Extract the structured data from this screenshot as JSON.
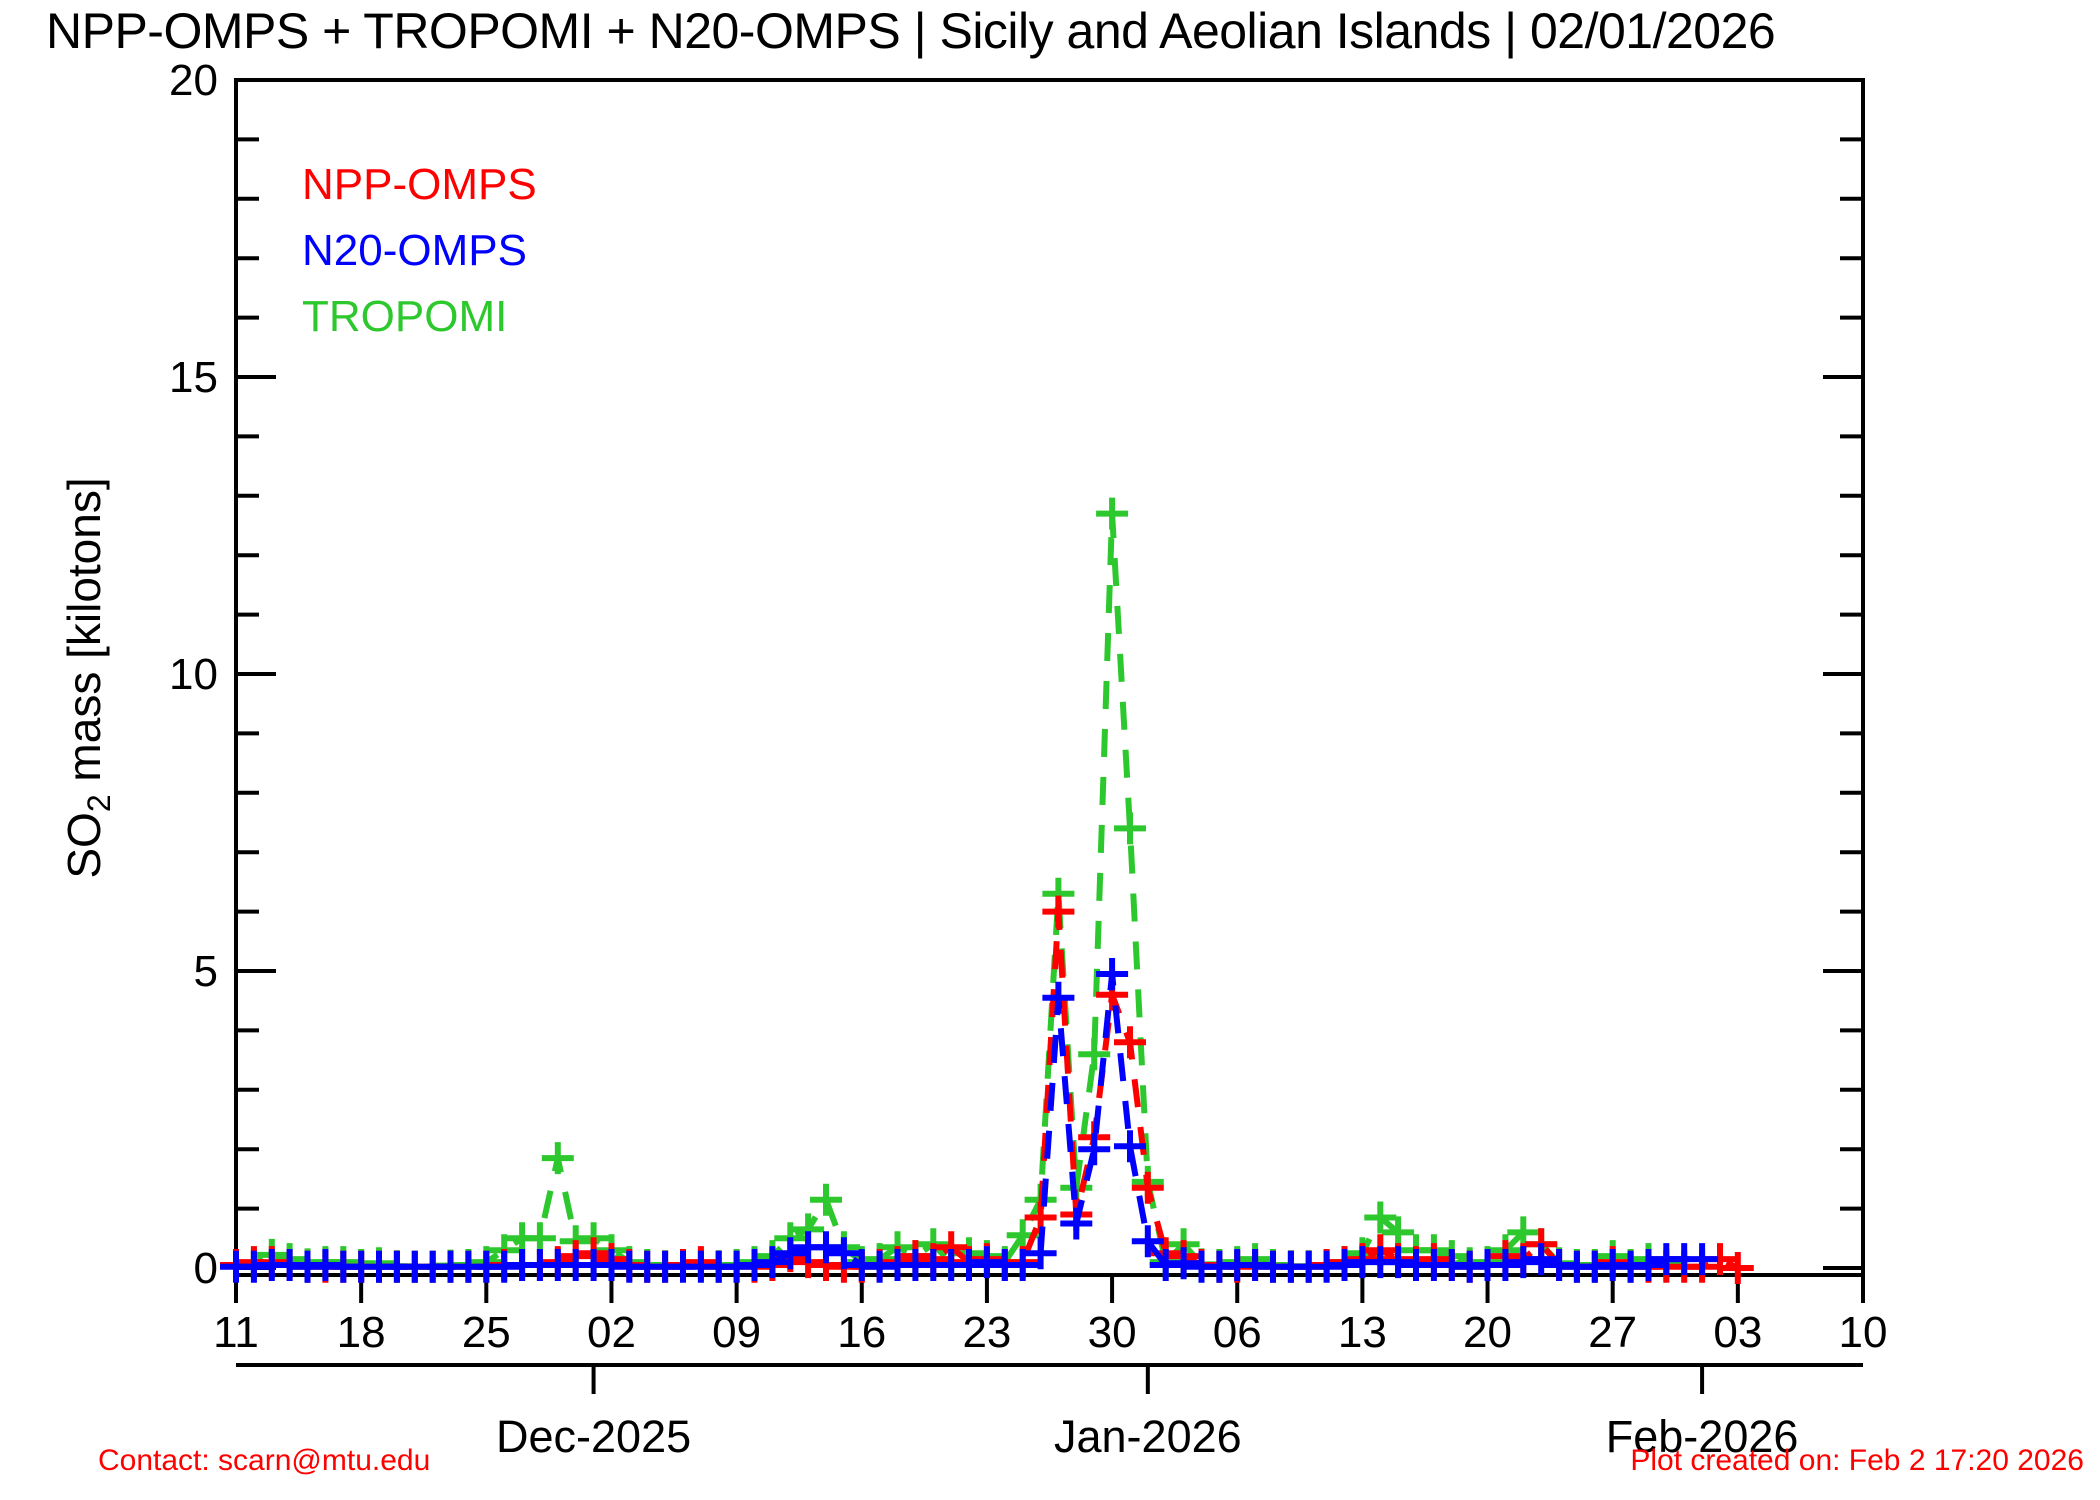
{
  "title": "NPP-OMPS + TROPOMI + N20-OMPS | Sicily and Aeolian Islands | 02/01/2026",
  "footer": {
    "contact": "Contact: scarn@mtu.edu",
    "created": "Plot created on: Feb  2 17:20 2026"
  },
  "legend": [
    {
      "label": "NPP-OMPS",
      "color": "#ff0000"
    },
    {
      "label": "N20-OMPS",
      "color": "#0000ff"
    },
    {
      "label": "TROPOMI",
      "color": "#2dc82d"
    }
  ],
  "chart_data": {
    "type": "line",
    "title": "NPP-OMPS + TROPOMI + N20-OMPS | Sicily and Aeolian Islands | 02/01/2026",
    "xlabel": "",
    "ylabel": {
      "text_main": "SO",
      "text_sub": "2",
      "text_rest": " mass [kilotons]"
    },
    "ylim": [
      0,
      20
    ],
    "yticks_major": [
      0,
      5,
      10,
      15,
      20
    ],
    "y_minor_step": 1,
    "grid": false,
    "legend_position": "upper-left-inside",
    "marker": "plus",
    "line_style": "dashed",
    "x_days_since": "2025-11-11",
    "x_range_days": [
      0,
      91
    ],
    "x_day_ticks": [
      {
        "d": 0,
        "label": "11"
      },
      {
        "d": 7,
        "label": "18"
      },
      {
        "d": 14,
        "label": "25"
      },
      {
        "d": 21,
        "label": "02"
      },
      {
        "d": 28,
        "label": "09"
      },
      {
        "d": 35,
        "label": "16"
      },
      {
        "d": 42,
        "label": "23"
      },
      {
        "d": 49,
        "label": "30"
      },
      {
        "d": 56,
        "label": "06"
      },
      {
        "d": 63,
        "label": "13"
      },
      {
        "d": 70,
        "label": "20"
      },
      {
        "d": 77,
        "label": "27"
      },
      {
        "d": 84,
        "label": "03"
      },
      {
        "d": 91,
        "label": "10"
      }
    ],
    "month_ticks": [
      {
        "d": 20,
        "label": "Dec-2025"
      },
      {
        "d": 51,
        "label": "Jan-2026"
      },
      {
        "d": 82,
        "label": "Feb-2026"
      }
    ],
    "series": [
      {
        "name": "TROPOMI",
        "color": "#2dc82d",
        "points": [
          [
            0,
            0.05
          ],
          [
            1,
            0.08
          ],
          [
            2,
            0.22
          ],
          [
            3,
            0.15
          ],
          [
            4,
            0.06
          ],
          [
            5,
            0.1
          ],
          [
            6,
            0.1
          ],
          [
            7,
            0.05
          ],
          [
            8,
            0.08
          ],
          [
            9,
            0.03
          ],
          [
            10,
            0.02
          ],
          [
            11,
            0.02
          ],
          [
            12,
            0.04
          ],
          [
            13,
            0.05
          ],
          [
            14,
            0.1
          ],
          [
            15,
            0.3
          ],
          [
            16,
            0.5
          ],
          [
            17,
            0.5
          ],
          [
            18,
            1.85
          ],
          [
            19,
            0.45
          ],
          [
            20,
            0.5
          ],
          [
            21,
            0.3
          ],
          [
            22,
            0.1
          ],
          [
            23,
            0.05
          ],
          [
            24,
            0.03
          ],
          [
            25,
            0.03
          ],
          [
            26,
            0.05
          ],
          [
            27,
            0.03
          ],
          [
            28,
            0.05
          ],
          [
            29,
            0.1
          ],
          [
            30,
            0.2
          ],
          [
            31,
            0.5
          ],
          [
            32,
            0.65
          ],
          [
            33,
            1.15
          ],
          [
            34,
            0.35
          ],
          [
            35,
            0.1
          ],
          [
            36,
            0.15
          ],
          [
            37,
            0.35
          ],
          [
            38,
            0.2
          ],
          [
            39,
            0.4
          ],
          [
            40,
            0.08
          ],
          [
            41,
            0.25
          ],
          [
            42,
            0.2
          ],
          [
            43,
            0.1
          ],
          [
            44,
            0.55
          ],
          [
            45,
            1.15
          ],
          [
            46,
            6.3
          ],
          [
            47,
            1.35
          ],
          [
            48,
            3.6
          ],
          [
            49,
            12.7
          ],
          [
            50,
            7.4
          ],
          [
            51,
            1.45
          ],
          [
            52,
            0.1
          ],
          [
            53,
            0.4
          ],
          [
            54,
            0.06
          ],
          [
            55,
            0.05
          ],
          [
            56,
            0.1
          ],
          [
            57,
            0.15
          ],
          [
            58,
            0.05
          ],
          [
            59,
            0.03
          ],
          [
            60,
            0.03
          ],
          [
            61,
            0.05
          ],
          [
            62,
            0.1
          ],
          [
            63,
            0.25
          ],
          [
            64,
            0.85
          ],
          [
            65,
            0.6
          ],
          [
            66,
            0.3
          ],
          [
            67,
            0.3
          ],
          [
            68,
            0.2
          ],
          [
            69,
            0.08
          ],
          [
            70,
            0.1
          ],
          [
            71,
            0.3
          ],
          [
            72,
            0.6
          ],
          [
            73,
            0.4
          ],
          [
            74,
            0.08
          ],
          [
            75,
            0.05
          ],
          [
            76,
            0.05
          ],
          [
            77,
            0.2
          ],
          [
            78,
            0.05
          ],
          [
            79,
            0.15
          ],
          [
            80,
            0.05
          ]
        ]
      },
      {
        "name": "NPP-OMPS",
        "color": "#ff0000",
        "points": [
          [
            0,
            0.05
          ],
          [
            1,
            0.1
          ],
          [
            2,
            0.1
          ],
          [
            3,
            0.05
          ],
          [
            4,
            0.02
          ],
          [
            5,
            0.02
          ],
          [
            6,
            0.02
          ],
          [
            7,
            0.02
          ],
          [
            8,
            0.02
          ],
          [
            9,
            0.02
          ],
          [
            10,
            0.02
          ],
          [
            11,
            0.02
          ],
          [
            12,
            0.02
          ],
          [
            13,
            0.02
          ],
          [
            14,
            0.02
          ],
          [
            15,
            0.05
          ],
          [
            16,
            0.05
          ],
          [
            17,
            0.05
          ],
          [
            18,
            0.1
          ],
          [
            19,
            0.2
          ],
          [
            20,
            0.25
          ],
          [
            21,
            0.15
          ],
          [
            22,
            0.05
          ],
          [
            23,
            0.02
          ],
          [
            24,
            0.02
          ],
          [
            25,
            0.05
          ],
          [
            26,
            0.1
          ],
          [
            27,
            0.02
          ],
          [
            28,
            0.02
          ],
          [
            29,
            0.02
          ],
          [
            30,
            0.05
          ],
          [
            31,
            0.2
          ],
          [
            32,
            0.1
          ],
          [
            33,
            0.05
          ],
          [
            34,
            0.02
          ],
          [
            35,
            0.02
          ],
          [
            36,
            0.05
          ],
          [
            37,
            0.1
          ],
          [
            38,
            0.2
          ],
          [
            39,
            0.15
          ],
          [
            40,
            0.35
          ],
          [
            41,
            0.1
          ],
          [
            42,
            0.15
          ],
          [
            43,
            0.05
          ],
          [
            44,
            0.1
          ],
          [
            45,
            0.85
          ],
          [
            46,
            6.0
          ],
          [
            47,
            0.9
          ],
          [
            48,
            2.2
          ],
          [
            49,
            4.6
          ],
          [
            50,
            3.8
          ],
          [
            51,
            1.35
          ],
          [
            52,
            0.25
          ],
          [
            53,
            0.2
          ],
          [
            54,
            0.05
          ],
          [
            55,
            0.02
          ],
          [
            56,
            0.02
          ],
          [
            57,
            0.05
          ],
          [
            58,
            0.02
          ],
          [
            59,
            0.02
          ],
          [
            60,
            0.02
          ],
          [
            61,
            0.05
          ],
          [
            62,
            0.1
          ],
          [
            63,
            0.15
          ],
          [
            64,
            0.3
          ],
          [
            65,
            0.15
          ],
          [
            66,
            0.1
          ],
          [
            67,
            0.15
          ],
          [
            68,
            0.05
          ],
          [
            69,
            0.02
          ],
          [
            70,
            0.05
          ],
          [
            71,
            0.2
          ],
          [
            72,
            0.15
          ],
          [
            73,
            0.4
          ],
          [
            74,
            0.05
          ],
          [
            75,
            0.02
          ],
          [
            76,
            0.02
          ],
          [
            77,
            0.1
          ],
          [
            78,
            0.02
          ],
          [
            79,
            0.02
          ],
          [
            80,
            0.02
          ],
          [
            81,
            0.02
          ],
          [
            82,
            0.02
          ],
          [
            83,
            0.15
          ],
          [
            84,
            0.0
          ]
        ]
      },
      {
        "name": "N20-OMPS",
        "color": "#0000ff",
        "points": [
          [
            0,
            0.02
          ],
          [
            1,
            0.02
          ],
          [
            2,
            0.05
          ],
          [
            3,
            0.05
          ],
          [
            4,
            0.02
          ],
          [
            5,
            0.05
          ],
          [
            6,
            0.02
          ],
          [
            7,
            0.02
          ],
          [
            8,
            0.02
          ],
          [
            9,
            0.02
          ],
          [
            10,
            0.02
          ],
          [
            11,
            0.02
          ],
          [
            12,
            0.02
          ],
          [
            13,
            0.02
          ],
          [
            14,
            0.02
          ],
          [
            15,
            0.02
          ],
          [
            16,
            0.05
          ],
          [
            17,
            0.05
          ],
          [
            18,
            0.05
          ],
          [
            19,
            0.05
          ],
          [
            20,
            0.05
          ],
          [
            21,
            0.05
          ],
          [
            22,
            0.02
          ],
          [
            23,
            0.02
          ],
          [
            24,
            0.02
          ],
          [
            25,
            0.02
          ],
          [
            26,
            0.02
          ],
          [
            27,
            0.02
          ],
          [
            28,
            0.02
          ],
          [
            29,
            0.05
          ],
          [
            30,
            0.1
          ],
          [
            31,
            0.25
          ],
          [
            32,
            0.35
          ],
          [
            33,
            0.35
          ],
          [
            34,
            0.25
          ],
          [
            35,
            0.05
          ],
          [
            36,
            0.02
          ],
          [
            37,
            0.05
          ],
          [
            38,
            0.05
          ],
          [
            39,
            0.05
          ],
          [
            40,
            0.05
          ],
          [
            41,
            0.05
          ],
          [
            42,
            0.1
          ],
          [
            43,
            0.05
          ],
          [
            44,
            0.05
          ],
          [
            45,
            0.25
          ],
          [
            46,
            4.55
          ],
          [
            47,
            0.75
          ],
          [
            48,
            2.0
          ],
          [
            49,
            4.95
          ],
          [
            50,
            2.05
          ],
          [
            51,
            0.45
          ],
          [
            52,
            0.05
          ],
          [
            53,
            0.08
          ],
          [
            54,
            0.02
          ],
          [
            55,
            0.02
          ],
          [
            56,
            0.05
          ],
          [
            57,
            0.05
          ],
          [
            58,
            0.02
          ],
          [
            59,
            0.02
          ],
          [
            60,
            0.02
          ],
          [
            61,
            0.02
          ],
          [
            62,
            0.05
          ],
          [
            63,
            0.1
          ],
          [
            64,
            0.1
          ],
          [
            65,
            0.1
          ],
          [
            66,
            0.05
          ],
          [
            67,
            0.05
          ],
          [
            68,
            0.05
          ],
          [
            69,
            0.02
          ],
          [
            70,
            0.05
          ],
          [
            71,
            0.05
          ],
          [
            72,
            0.1
          ],
          [
            73,
            0.15
          ],
          [
            74,
            0.05
          ],
          [
            75,
            0.02
          ],
          [
            76,
            0.02
          ],
          [
            77,
            0.05
          ],
          [
            78,
            0.02
          ],
          [
            79,
            0.05
          ],
          [
            80,
            0.15
          ],
          [
            81,
            0.15
          ],
          [
            82,
            0.15
          ]
        ]
      }
    ]
  }
}
